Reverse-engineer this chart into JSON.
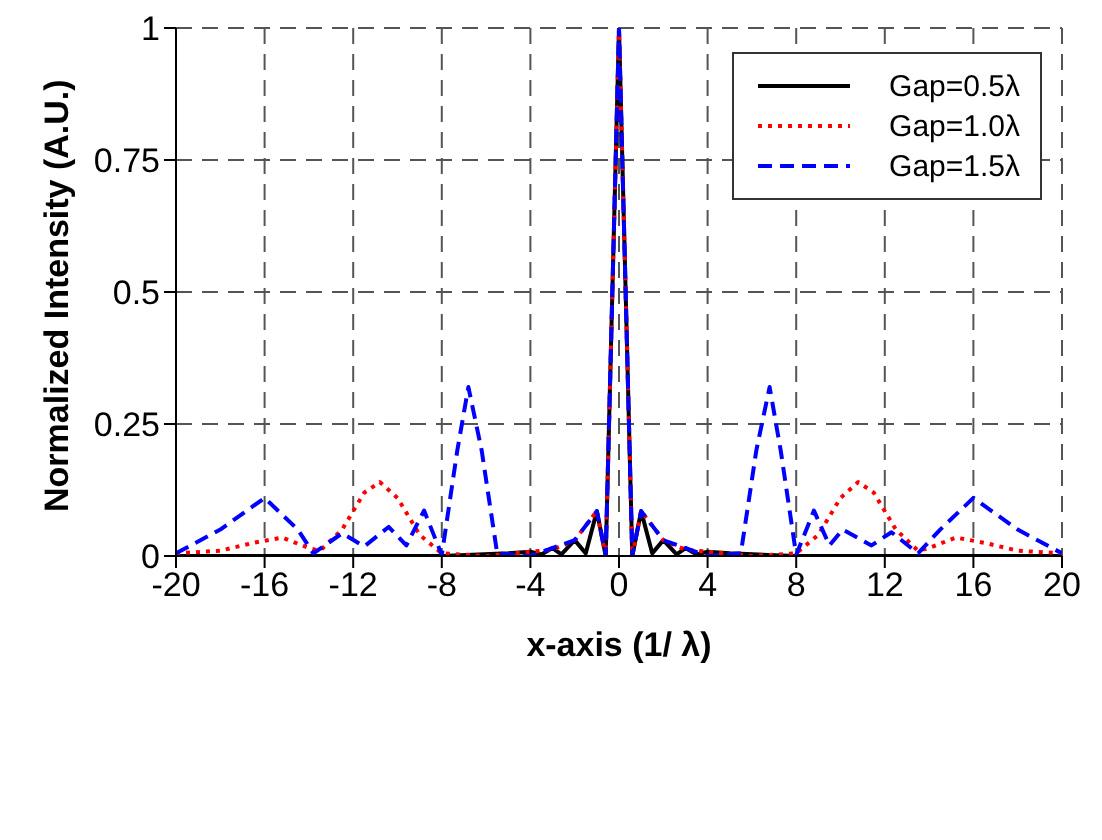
{
  "chart_data": {
    "type": "line",
    "xlabel": "x-axis (1/ λ)",
    "ylabel": "Normalized Intensity (A.U.)",
    "xlim": [
      -20,
      20
    ],
    "xticks": [
      -20,
      -16,
      -12,
      -8,
      -4,
      0,
      4,
      8,
      12,
      16,
      20
    ],
    "ylim": [
      0,
      1
    ],
    "yticks": [
      0,
      0.25,
      0.5,
      0.75,
      1
    ],
    "grid": true,
    "legend": "top right",
    "series": [
      {
        "name": "Gap=0.5λ",
        "color": "#000000",
        "line_style": "solid",
        "x": [
          -20,
          -8,
          -5,
          -4,
          -3.5,
          -3,
          -2.6,
          -2,
          -1.5,
          -1,
          -0.6,
          -0.3,
          0,
          0.3,
          0.6,
          1,
          1.5,
          2,
          2.6,
          3,
          3.5,
          4,
          5,
          8,
          20
        ],
        "values": [
          0,
          0,
          0.005,
          0.008,
          0.003,
          0.015,
          0.003,
          0.03,
          0.005,
          0.085,
          0,
          0.5,
          1,
          0.5,
          0,
          0.085,
          0.005,
          0.03,
          0.003,
          0.015,
          0.003,
          0.008,
          0.005,
          0,
          0
        ]
      },
      {
        "name": "Gap=1.0λ",
        "color": "#ff0000",
        "line_style": "dotted",
        "x": [
          -20,
          -18,
          -16.5,
          -15.2,
          -14,
          -13.5,
          -12.5,
          -11.5,
          -10.8,
          -10,
          -9,
          -8,
          -6,
          -3,
          -2,
          -1,
          -0.6,
          -0.3,
          0,
          0.3,
          0.6,
          1,
          2,
          3,
          6,
          8,
          9,
          10,
          10.8,
          11.5,
          12.5,
          13.5,
          14,
          15.2,
          16.5,
          18,
          20
        ],
        "values": [
          0.005,
          0.01,
          0.025,
          0.035,
          0.015,
          0.01,
          0.05,
          0.12,
          0.14,
          0.11,
          0.04,
          0.005,
          0,
          0.012,
          0.03,
          0.085,
          0,
          0.5,
          1,
          0.5,
          0,
          0.085,
          0.03,
          0.012,
          0,
          0.005,
          0.04,
          0.11,
          0.14,
          0.12,
          0.05,
          0.01,
          0.015,
          0.035,
          0.025,
          0.01,
          0.005
        ]
      },
      {
        "name": "Gap=1.5λ",
        "color": "#0000ff",
        "line_style": "dashed",
        "x": [
          -20,
          -18,
          -16,
          -14.5,
          -13.8,
          -12.5,
          -11.5,
          -10.4,
          -9.6,
          -8.8,
          -8,
          -7.3,
          -6.8,
          -6.2,
          -5.5,
          -4,
          -2,
          -1,
          -0.6,
          -0.3,
          0,
          0.3,
          0.6,
          1,
          2,
          4,
          5.5,
          6.2,
          6.8,
          7.3,
          8,
          8.8,
          9.5,
          10.1,
          11.4,
          12.3,
          13.5,
          14.5,
          16,
          18,
          20
        ],
        "values": [
          0.005,
          0.05,
          0.11,
          0.05,
          0.005,
          0.043,
          0.018,
          0.055,
          0.02,
          0.086,
          0.002,
          0.2,
          0.32,
          0.2,
          0.005,
          0,
          0.03,
          0.085,
          0,
          0.5,
          1,
          0.5,
          0,
          0.085,
          0.03,
          0,
          0.005,
          0.2,
          0.32,
          0.2,
          0.002,
          0.086,
          0.02,
          0.05,
          0.02,
          0.045,
          0.005,
          0.05,
          0.11,
          0.05,
          0.005
        ]
      }
    ]
  }
}
